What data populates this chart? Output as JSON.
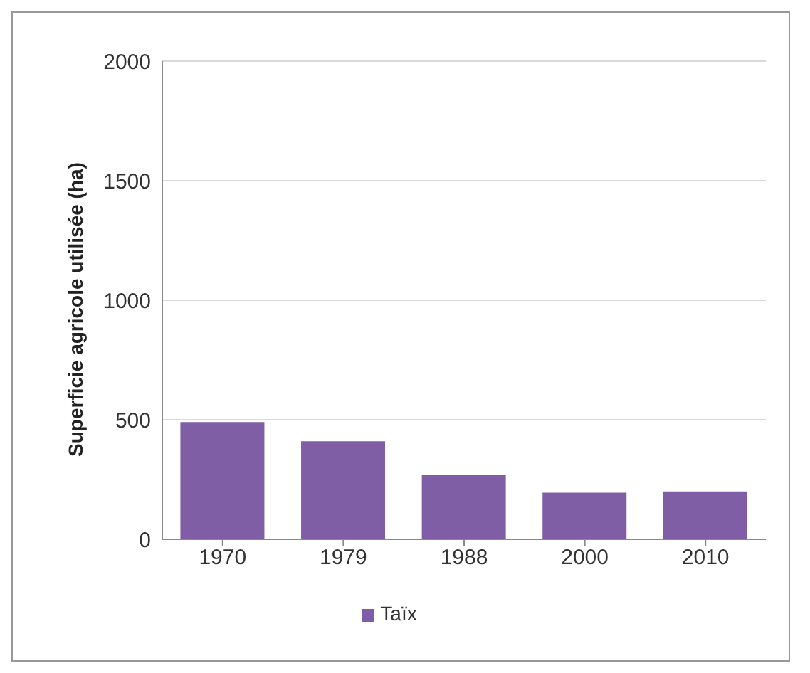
{
  "chart_data": {
    "type": "bar",
    "ylabel": "Superficie agricole utilisée (ha)",
    "categories": [
      "1970",
      "1979",
      "1988",
      "2000",
      "2010"
    ],
    "series": [
      {
        "name": "Taïx",
        "color": "#7f5ea6",
        "values": [
          490,
          410,
          270,
          195,
          200
        ]
      }
    ],
    "ylim": [
      0,
      2000
    ],
    "yticks": [
      0,
      500,
      1000,
      1500,
      2000
    ],
    "grid": "y",
    "legend": "bottom"
  }
}
